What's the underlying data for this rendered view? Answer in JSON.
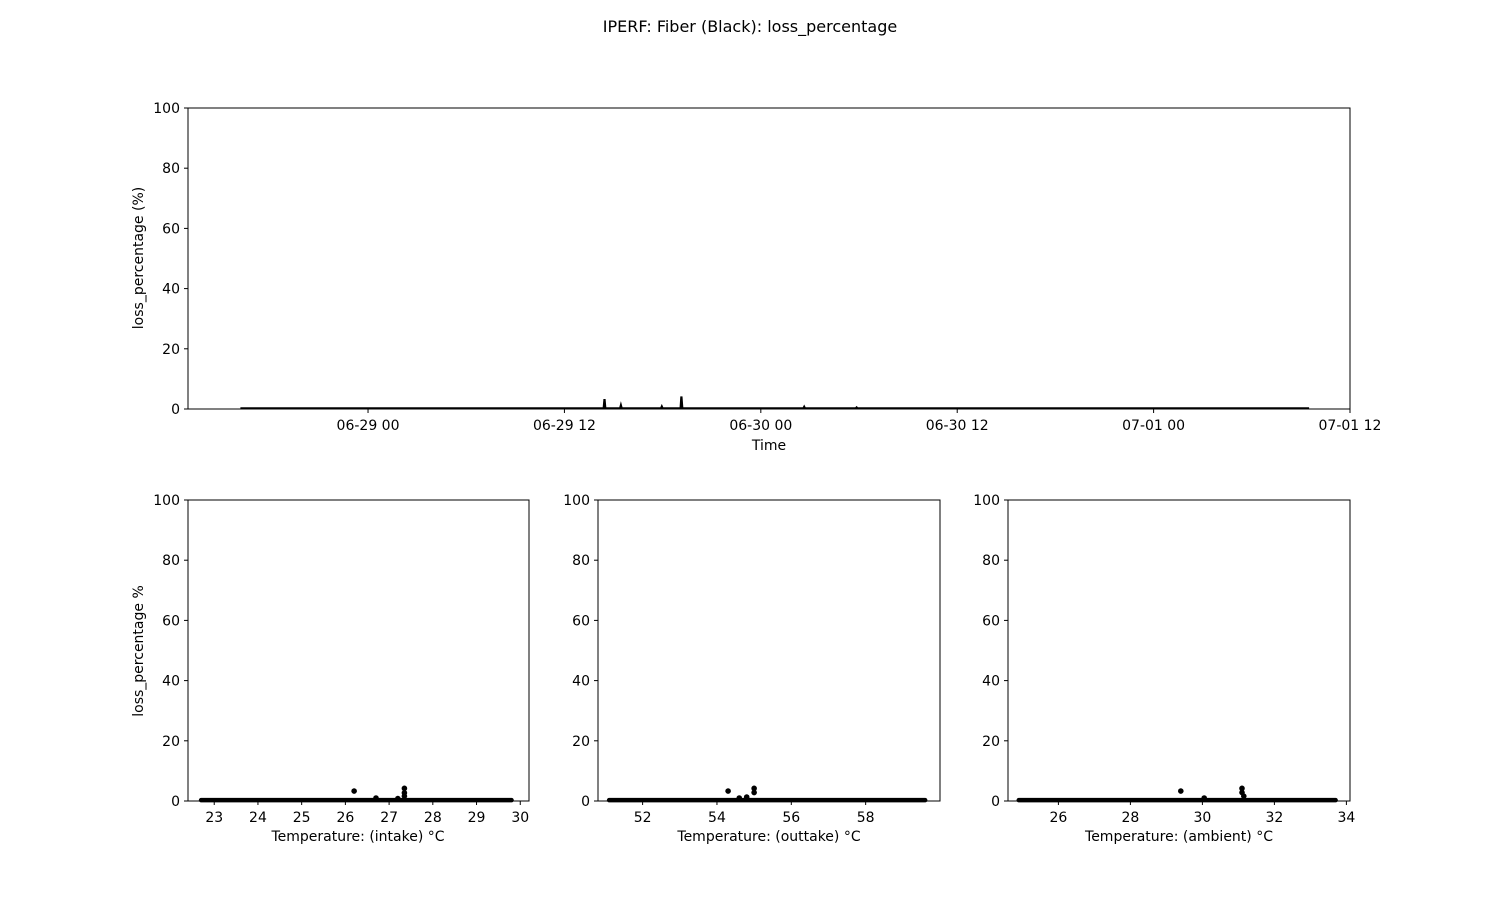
{
  "figure": {
    "title": "IPERF: Fiber (Black): loss_percentage"
  },
  "chart_data": [
    {
      "id": "time",
      "type": "line",
      "title": "",
      "xlabel": "Time",
      "ylabel": "loss_percentage (%)",
      "xlim": [
        -11,
        60
      ],
      "ylim": [
        0,
        100
      ],
      "x_unit": "hours since 06-29 00:00",
      "xticks": [
        {
          "value": 0,
          "label": "06-29 00"
        },
        {
          "value": 12,
          "label": "06-29 12"
        },
        {
          "value": 24,
          "label": "06-30 00"
        },
        {
          "value": 36,
          "label": "06-30 12"
        },
        {
          "value": 48,
          "label": "07-01 00"
        },
        {
          "value": 60,
          "label": "07-01 12"
        }
      ],
      "yticks": [
        0,
        20,
        40,
        60,
        80,
        100
      ],
      "series": [
        {
          "name": "loss_percentage",
          "color": "#000000",
          "x": [
            -7.8,
            14.4,
            14.45,
            14.5,
            15.4,
            15.45,
            15.5,
            17.9,
            17.95,
            18.0,
            19.1,
            19.15,
            19.2,
            26.6,
            26.65,
            26.7,
            29.8,
            29.85,
            29.9,
            57.5
          ],
          "values": [
            0.2,
            0.2,
            3.3,
            0.2,
            0.2,
            1.2,
            0.2,
            0.2,
            0.8,
            0.2,
            0.2,
            4.2,
            0.2,
            0.2,
            0.7,
            0.2,
            0.2,
            0.5,
            0.2,
            0.2
          ]
        }
      ]
    },
    {
      "id": "intake",
      "type": "scatter",
      "xlabel": "Temperature: (intake) °C",
      "ylabel": "loss_percentage %",
      "xlim": [
        22.4,
        30.2
      ],
      "ylim": [
        0,
        100
      ],
      "xticks": [
        23,
        24,
        25,
        26,
        27,
        28,
        29,
        30
      ],
      "yticks": [
        0,
        20,
        40,
        60,
        80,
        100
      ],
      "band": {
        "x_start": 22.7,
        "x_end": 29.8,
        "y": 0.3
      },
      "points": [
        {
          "x": 26.2,
          "y": 3.3
        },
        {
          "x": 27.35,
          "y": 4.2
        },
        {
          "x": 27.35,
          "y": 2.7
        },
        {
          "x": 27.35,
          "y": 1.6
        },
        {
          "x": 26.7,
          "y": 1.0
        },
        {
          "x": 27.2,
          "y": 0.8
        }
      ]
    },
    {
      "id": "outtake",
      "type": "scatter",
      "xlabel": "Temperature: (outtake) °C",
      "ylabel": "",
      "xlim": [
        50.8,
        60.0
      ],
      "ylim": [
        0,
        100
      ],
      "xticks": [
        52,
        54,
        56,
        58
      ],
      "yticks": [
        0,
        20,
        40,
        60,
        80,
        100
      ],
      "band": {
        "x_start": 51.1,
        "x_end": 59.6,
        "y": 0.3
      },
      "points": [
        {
          "x": 54.3,
          "y": 3.3
        },
        {
          "x": 55.0,
          "y": 4.2
        },
        {
          "x": 55.0,
          "y": 2.8
        },
        {
          "x": 54.8,
          "y": 1.3
        },
        {
          "x": 54.6,
          "y": 1.0
        }
      ]
    },
    {
      "id": "ambient",
      "type": "scatter",
      "xlabel": "Temperature: (ambient) °C",
      "ylabel": "",
      "xlim": [
        24.6,
        34.1
      ],
      "ylim": [
        0,
        100
      ],
      "xticks": [
        26,
        28,
        30,
        32,
        34
      ],
      "yticks": [
        0,
        20,
        40,
        60,
        80,
        100
      ],
      "band": {
        "x_start": 24.9,
        "x_end": 33.7,
        "y": 0.3
      },
      "points": [
        {
          "x": 29.4,
          "y": 3.3
        },
        {
          "x": 31.1,
          "y": 4.2
        },
        {
          "x": 31.1,
          "y": 2.8
        },
        {
          "x": 31.15,
          "y": 1.6
        },
        {
          "x": 30.05,
          "y": 1.0
        }
      ]
    }
  ]
}
